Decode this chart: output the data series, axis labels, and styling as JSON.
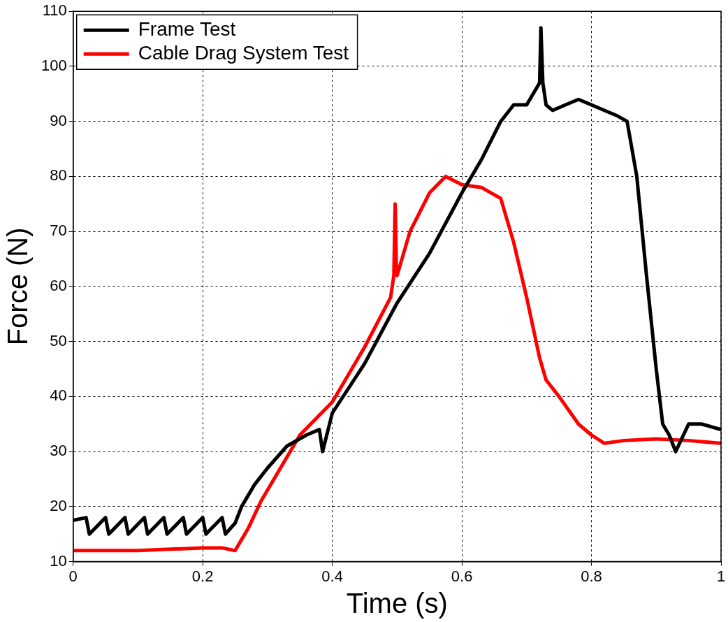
{
  "chart_data": {
    "type": "line",
    "xlabel": "Time (s)",
    "ylabel": "Force (N)",
    "xlim": [
      0,
      1
    ],
    "xticks": [
      0,
      0.2,
      0.4,
      0.6,
      0.8,
      1
    ],
    "ylim": [
      10,
      110
    ],
    "yticks": [
      10,
      20,
      30,
      40,
      50,
      60,
      70,
      80,
      90,
      100,
      110
    ],
    "grid": true,
    "legend": "top left",
    "marker": "none",
    "line_style": "solid",
    "series": [
      {
        "name": "Frame Test",
        "color": "#000000",
        "x": [
          0,
          0.02,
          0.025,
          0.05,
          0.055,
          0.08,
          0.085,
          0.11,
          0.115,
          0.14,
          0.145,
          0.17,
          0.175,
          0.2,
          0.205,
          0.23,
          0.235,
          0.25,
          0.26,
          0.28,
          0.3,
          0.33,
          0.36,
          0.38,
          0.385,
          0.4,
          0.45,
          0.5,
          0.55,
          0.6,
          0.63,
          0.66,
          0.68,
          0.7,
          0.715,
          0.72,
          0.722,
          0.725,
          0.73,
          0.74,
          0.76,
          0.78,
          0.8,
          0.82,
          0.84,
          0.855,
          0.87,
          0.885,
          0.9,
          0.91,
          0.92,
          0.93,
          0.95,
          0.97,
          1
        ],
        "values": [
          17.5,
          18,
          15,
          18,
          15,
          18,
          15,
          18,
          15,
          18,
          15,
          18,
          15,
          18,
          15,
          18,
          15,
          17,
          20,
          24,
          27,
          31,
          33,
          34,
          30,
          37,
          46,
          57,
          66,
          77,
          83,
          90,
          93,
          93,
          96,
          97,
          107,
          97,
          93,
          92,
          93,
          94,
          93,
          92,
          91,
          90,
          80,
          62,
          45,
          35,
          33,
          30,
          35,
          35,
          34
        ]
      },
      {
        "name": "Cable Drag System Test",
        "color": "#ff0000",
        "x": [
          0,
          0.05,
          0.1,
          0.2,
          0.23,
          0.25,
          0.27,
          0.29,
          0.32,
          0.35,
          0.4,
          0.45,
          0.49,
          0.495,
          0.497,
          0.499,
          0.5,
          0.52,
          0.55,
          0.575,
          0.6,
          0.63,
          0.66,
          0.68,
          0.7,
          0.72,
          0.73,
          0.75,
          0.78,
          0.8,
          0.82,
          0.85,
          0.9,
          0.95,
          1
        ],
        "values": [
          12,
          12,
          12,
          12.5,
          12.5,
          12,
          16,
          21,
          27,
          33,
          39,
          49,
          58,
          62,
          75,
          63,
          62,
          70,
          77,
          80,
          78.5,
          78,
          76,
          68,
          58,
          47,
          43,
          40,
          35,
          33,
          31.5,
          32,
          32.3,
          32,
          31.5
        ]
      }
    ]
  }
}
